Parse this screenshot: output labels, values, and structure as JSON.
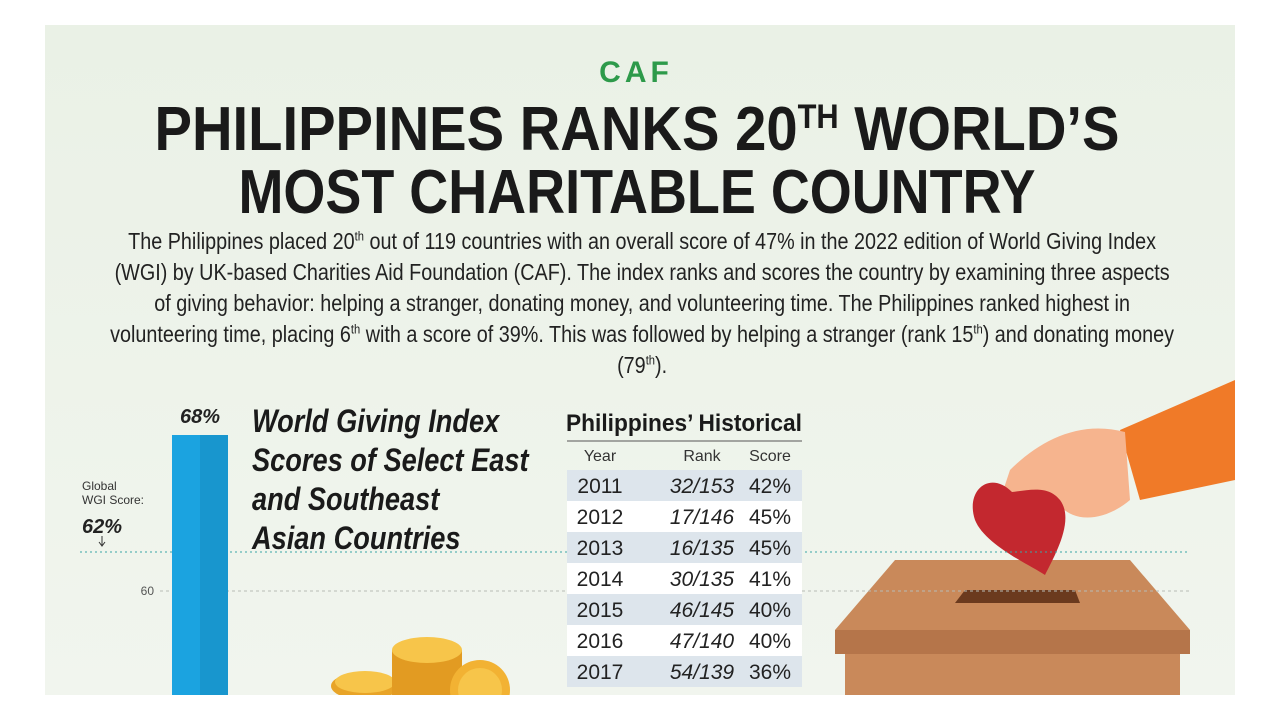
{
  "brand": "CAF",
  "headline": {
    "line1": "PHILIPPINES RANKS 20",
    "line1_sup": "TH",
    "line1_end": " WORLD’S",
    "line2": "MOST CHARITABLE COUNTRY"
  },
  "body": [
    {
      "text": "The Philippines placed 20"
    },
    {
      "sup": "th"
    },
    {
      "text": " out of 119 countries with an overall score of 47% in the 2022 edition of World Giving Index (WGI) by UK-based Charities Aid Foundation (CAF). The index ranks and scores the country by examining three aspects of giving behavior: helping a stranger, donating money, and volunteering time. The Philippines ranked highest in volunteering time, placing 6"
    },
    {
      "sup": "th"
    },
    {
      "text": " with a score of 39%. This was followed by helping a stranger (rank 15"
    },
    {
      "sup": "th"
    },
    {
      "text": ") and donating money (79"
    },
    {
      "sup": "th"
    },
    {
      "text": ")."
    }
  ],
  "chart": {
    "title_lines": [
      "World Giving Index",
      "Scores of Select East",
      "and Southeast",
      "Asian Countries"
    ],
    "bar": {
      "value": 68,
      "value_label": "68%",
      "color": "#1ba3e0"
    },
    "tick": 60,
    "global": {
      "label_lines": [
        "Global",
        "WGI Score:"
      ],
      "value": 62,
      "value_label": "62%"
    }
  },
  "table": {
    "title": "Philippines’ Historical",
    "header": [
      "Year",
      "Rank",
      "Score"
    ],
    "rows": [
      [
        "2011",
        "32/153",
        "42%"
      ],
      [
        "2012",
        "17/146",
        "45%"
      ],
      [
        "2013",
        "16/135",
        "45%"
      ],
      [
        "2014",
        "30/135",
        "41%"
      ],
      [
        "2015",
        "46/145",
        "40%"
      ],
      [
        "2016",
        "47/140",
        "40%"
      ],
      [
        "2017",
        "54/139",
        "36%"
      ]
    ]
  }
}
